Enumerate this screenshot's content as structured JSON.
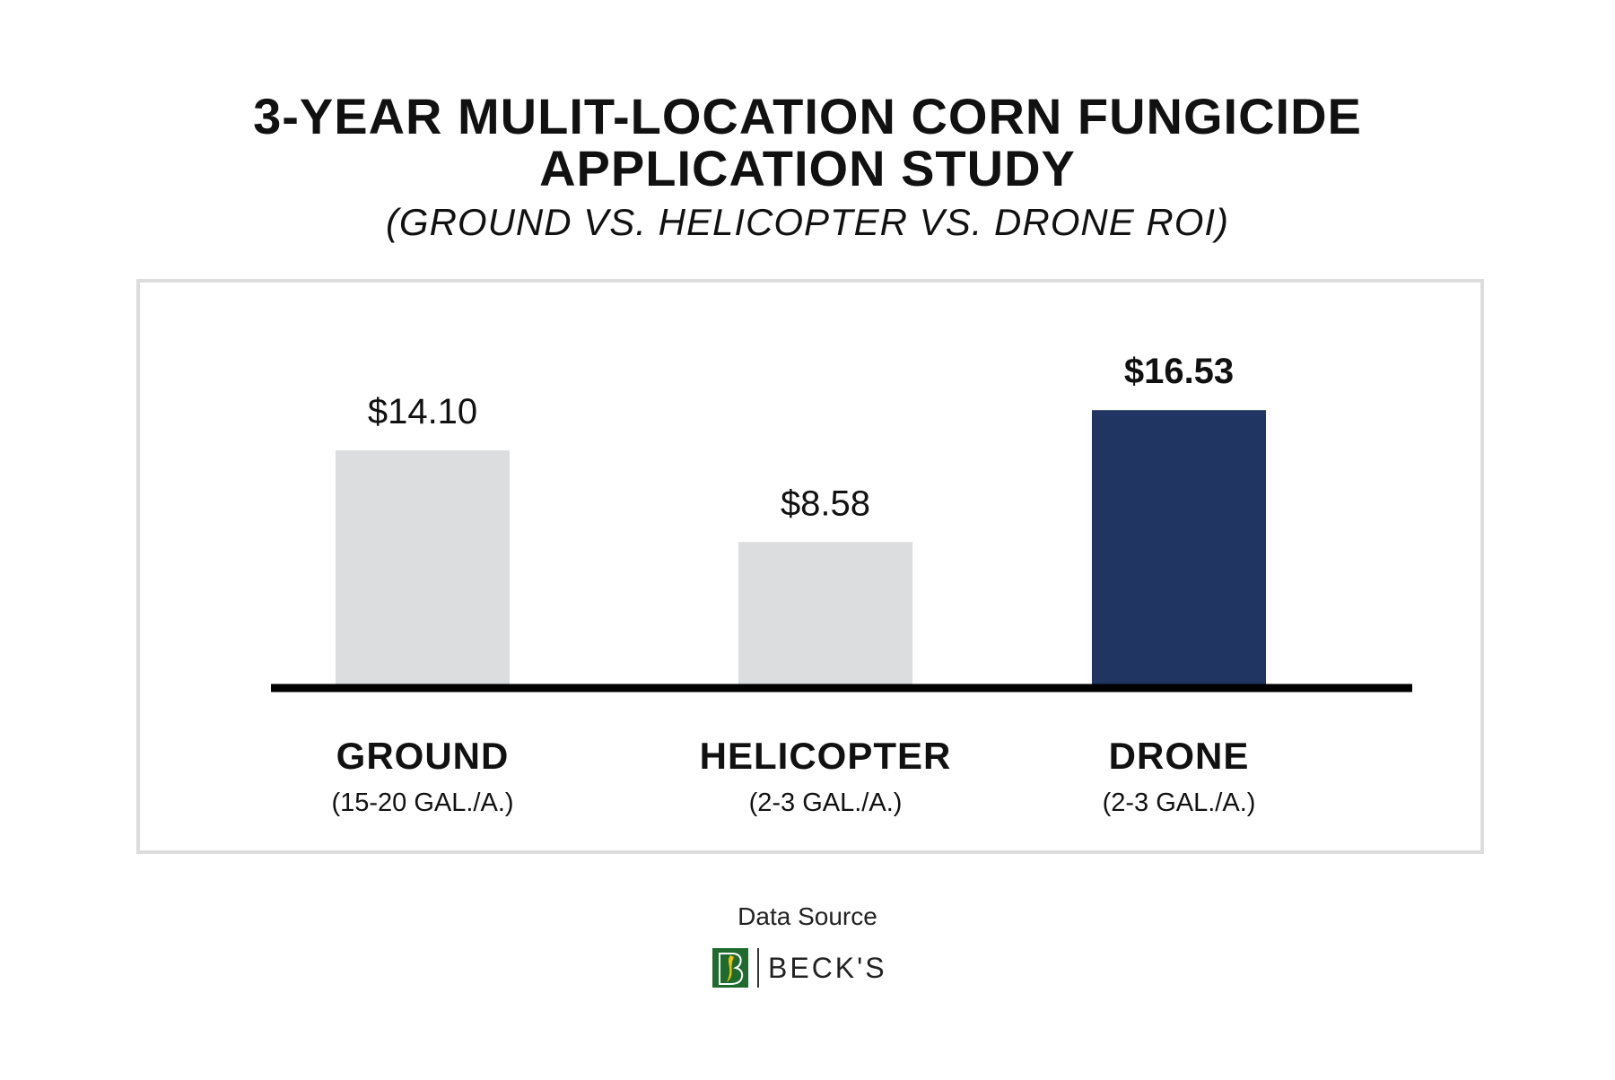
{
  "chart_data": {
    "type": "bar",
    "title": "3-YEAR MULIT-LOCATION CORN FUNGICIDE APPLICATION STUDY",
    "title_lines": [
      "3-YEAR MULIT-LOCATION CORN FUNGICIDE",
      "APPLICATION STUDY"
    ],
    "subtitle": "(GROUND VS. HELICOPTER VS. DRONE ROI)",
    "categories": [
      "GROUND",
      "HELICOPTER",
      "DRONE"
    ],
    "category_sublabels": [
      "(15-20 GAL./A.)",
      "(2-3 GAL./A.)",
      "(2-3 GAL./A.)"
    ],
    "values": [
      14.1,
      8.58,
      16.53
    ],
    "value_labels": [
      "$14.10",
      "$8.58",
      "$16.53"
    ],
    "bar_colors": [
      "#dcdddf",
      "#dcdddf",
      "#203562"
    ],
    "highlight_index": 2,
    "ylim": [
      0,
      20
    ],
    "grid": false,
    "xlabel": "",
    "ylabel": ""
  },
  "footer": {
    "source_label": "Data Source",
    "logo_text": "BECK'S",
    "logo_icon": "becks-b-leaf-icon",
    "logo_colors": [
      "#1f6b2e",
      "#f2c400"
    ]
  }
}
